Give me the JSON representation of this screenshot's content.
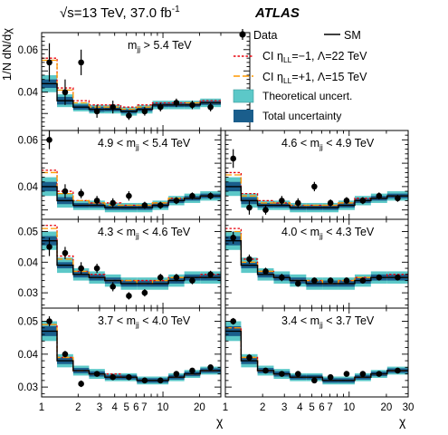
{
  "header": {
    "energy_text": "√s=13 TeV, 37.0 fb",
    "energy_sup": "-1",
    "experiment": "ATLAS"
  },
  "axes": {
    "ylabel": "1/N dN/dχ",
    "xlabel": "χ",
    "x_tick_labels_left": [
      "1",
      "2",
      "3",
      "4",
      "5",
      "6",
      "7",
      "10",
      "20"
    ],
    "x_tick_labels_right": [
      "1",
      "2",
      "3",
      "4",
      "5",
      "6",
      "7",
      "10",
      "20",
      "30"
    ]
  },
  "legend": {
    "data": "Data",
    "sm": "SM",
    "ci_minus_1": "CI η",
    "ci_minus_2": "LL",
    "ci_minus_3": "=−1, Λ=22 TeV",
    "ci_plus_1": "CI η",
    "ci_plus_2": "LL",
    "ci_plus_3": "=+1, Λ=15 TeV",
    "theo": "Theoretical uncert.",
    "total": "Total uncertainty"
  },
  "colors": {
    "theo_band": "#5cc8c8",
    "total_band": "#1a5e8c",
    "ci_minus": "#e8000b",
    "ci_plus": "#ff9900",
    "sm": "#000000",
    "data": "#000000"
  },
  "chart_data": {
    "type": "line",
    "x_scale": "log",
    "xlim": [
      1,
      30
    ],
    "bin_edges": [
      1,
      1.34,
      1.82,
      2.46,
      3.32,
      4.5,
      6.1,
      8.2,
      11.1,
      15.0,
      20.3,
      30.0
    ],
    "panels": [
      {
        "label_pre": "m",
        "label_sub": "jj",
        "label_post": " > 5.4 TeV",
        "ylim": [
          0.022,
          0.068
        ],
        "yticks": [
          "0.04",
          "0.06"
        ],
        "sm": [
          0.044,
          0.036,
          0.033,
          0.032,
          0.032,
          0.031,
          0.032,
          0.034,
          0.034,
          0.034,
          0.035
        ],
        "theo_hw": [
          0.004,
          0.003,
          0.002,
          0.002,
          0.002,
          0.002,
          0.002,
          0.002,
          0.002,
          0.002,
          0.002
        ],
        "total_hw": [
          0.002,
          0.0018,
          0.0012,
          0.0012,
          0.001,
          0.001,
          0.001,
          0.001,
          0.001,
          0.001,
          0.001
        ],
        "ci_minus": [
          0.056,
          0.042,
          0.036,
          0.034,
          0.034,
          0.033,
          0.034,
          0.035,
          0.035,
          0.035,
          0.036
        ],
        "ci_plus": [
          0.055,
          0.041,
          0.035,
          0.033,
          0.033,
          0.032,
          0.033,
          0.034,
          0.034,
          0.035,
          0.035
        ],
        "data": [
          0.054,
          0.04,
          0.054,
          0.031,
          0.033,
          0.029,
          0.031,
          0.033,
          0.035,
          0.034,
          0.033
        ],
        "err": [
          0.009,
          0.006,
          0.006,
          0.003,
          0.003,
          0.002,
          0.002,
          0.002,
          0.002,
          0.002,
          0.002
        ]
      },
      {
        "label_pre": "4.9 < m",
        "label_sub": "jj",
        "label_post": " < 5.4 TeV",
        "ylim": [
          0.026,
          0.064
        ],
        "yticks": [
          "0.04",
          "0.06"
        ],
        "sm": [
          0.04,
          0.034,
          0.032,
          0.032,
          0.031,
          0.031,
          0.031,
          0.032,
          0.034,
          0.035,
          0.036
        ],
        "theo_hw": [
          0.004,
          0.003,
          0.002,
          0.002,
          0.002,
          0.002,
          0.002,
          0.002,
          0.002,
          0.002,
          0.002
        ],
        "total_hw": [
          0.002,
          0.0015,
          0.001,
          0.001,
          0.001,
          0.001,
          0.001,
          0.001,
          0.001,
          0.001,
          0.001
        ],
        "ci_minus": [
          0.047,
          0.038,
          0.034,
          0.033,
          0.033,
          0.032,
          0.032,
          0.033,
          0.035,
          0.035,
          0.036
        ],
        "ci_plus": [
          0.046,
          0.037,
          0.034,
          0.033,
          0.032,
          0.032,
          0.032,
          0.033,
          0.035,
          0.035,
          0.036
        ],
        "data": [
          0.06,
          0.038,
          0.037,
          0.034,
          0.033,
          0.036,
          0.032,
          0.032,
          0.034,
          0.036,
          0.036
        ],
        "err": [
          0.004,
          0.003,
          0.002,
          0.002,
          0.002,
          0.002,
          0.0015,
          0.0015,
          0.0015,
          0.0015,
          0.0015
        ]
      },
      {
        "label_pre": "4.6 < m",
        "label_sub": "jj",
        "label_post": " < 4.9 TeV",
        "ylim": [
          0.026,
          0.064
        ],
        "yticks": [],
        "sm": [
          0.04,
          0.034,
          0.032,
          0.032,
          0.031,
          0.031,
          0.031,
          0.032,
          0.034,
          0.035,
          0.036
        ],
        "theo_hw": [
          0.004,
          0.003,
          0.002,
          0.002,
          0.002,
          0.002,
          0.002,
          0.002,
          0.002,
          0.002,
          0.002
        ],
        "total_hw": [
          0.002,
          0.0015,
          0.001,
          0.001,
          0.001,
          0.001,
          0.001,
          0.001,
          0.001,
          0.001,
          0.001
        ],
        "ci_minus": [
          0.046,
          0.037,
          0.034,
          0.033,
          0.032,
          0.032,
          0.032,
          0.033,
          0.035,
          0.035,
          0.036
        ],
        "ci_plus": [
          0.045,
          0.036,
          0.033,
          0.033,
          0.032,
          0.032,
          0.032,
          0.033,
          0.034,
          0.035,
          0.036
        ],
        "data": [
          0.052,
          0.031,
          0.03,
          0.034,
          0.033,
          0.04,
          0.033,
          0.034,
          0.034,
          0.036,
          0.035
        ],
        "err": [
          0.004,
          0.003,
          0.002,
          0.002,
          0.002,
          0.002,
          0.0015,
          0.0015,
          0.0015,
          0.0015,
          0.0015
        ]
      },
      {
        "label_pre": "4.3 < m",
        "label_sub": "jj",
        "label_post": " < 4.6 TeV",
        "ylim": [
          0.025,
          0.054
        ],
        "yticks": [
          "0.03",
          "0.04",
          "0.05"
        ],
        "sm": [
          0.047,
          0.039,
          0.036,
          0.035,
          0.034,
          0.033,
          0.033,
          0.033,
          0.034,
          0.035,
          0.035
        ],
        "theo_hw": [
          0.003,
          0.0025,
          0.002,
          0.002,
          0.002,
          0.002,
          0.002,
          0.002,
          0.002,
          0.002,
          0.002
        ],
        "total_hw": [
          0.0015,
          0.001,
          0.001,
          0.001,
          0.001,
          0.001,
          0.001,
          0.001,
          0.001,
          0.001,
          0.001
        ],
        "ci_minus": [
          0.052,
          0.042,
          0.037,
          0.036,
          0.034,
          0.034,
          0.034,
          0.034,
          0.035,
          0.035,
          0.036
        ],
        "ci_plus": [
          0.051,
          0.041,
          0.037,
          0.035,
          0.034,
          0.034,
          0.033,
          0.034,
          0.035,
          0.035,
          0.035
        ],
        "data": [
          0.045,
          0.043,
          0.038,
          0.038,
          0.032,
          0.029,
          0.03,
          0.035,
          0.035,
          0.034,
          0.036
        ],
        "err": [
          0.003,
          0.002,
          0.002,
          0.0015,
          0.0015,
          0.0012,
          0.0012,
          0.0012,
          0.0012,
          0.0012,
          0.0012
        ]
      },
      {
        "label_pre": "4.0 < m",
        "label_sub": "jj",
        "label_post": " < 4.3 TeV",
        "ylim": [
          0.025,
          0.054
        ],
        "yticks": [],
        "sm": [
          0.047,
          0.039,
          0.036,
          0.035,
          0.034,
          0.033,
          0.033,
          0.033,
          0.034,
          0.035,
          0.035
        ],
        "theo_hw": [
          0.003,
          0.0025,
          0.002,
          0.002,
          0.002,
          0.002,
          0.002,
          0.002,
          0.002,
          0.002,
          0.002
        ],
        "total_hw": [
          0.0015,
          0.001,
          0.001,
          0.001,
          0.001,
          0.001,
          0.001,
          0.001,
          0.001,
          0.001,
          0.001
        ],
        "ci_minus": [
          0.051,
          0.041,
          0.037,
          0.035,
          0.034,
          0.034,
          0.033,
          0.034,
          0.035,
          0.035,
          0.036
        ],
        "ci_plus": [
          0.05,
          0.04,
          0.037,
          0.035,
          0.034,
          0.034,
          0.033,
          0.034,
          0.035,
          0.035,
          0.035
        ],
        "data": [
          0.048,
          0.041,
          0.037,
          0.035,
          0.033,
          0.034,
          0.034,
          0.034,
          0.034,
          0.035,
          0.035
        ],
        "err": [
          0.002,
          0.0015,
          0.0012,
          0.0012,
          0.001,
          0.001,
          0.001,
          0.001,
          0.001,
          0.001,
          0.001
        ]
      },
      {
        "label_pre": "3.7 < m",
        "label_sub": "jj",
        "label_post": " < 4.0 TeV",
        "ylim": [
          0.027,
          0.054
        ],
        "yticks": [
          "0.03",
          "0.04",
          "0.05"
        ],
        "sm": [
          0.047,
          0.038,
          0.035,
          0.034,
          0.033,
          0.033,
          0.032,
          0.032,
          0.033,
          0.034,
          0.035
        ],
        "theo_hw": [
          0.003,
          0.002,
          0.0015,
          0.0015,
          0.0012,
          0.0012,
          0.0012,
          0.0012,
          0.0012,
          0.0012,
          0.0012
        ],
        "total_hw": [
          0.0015,
          0.001,
          0.0008,
          0.0008,
          0.0007,
          0.0007,
          0.0007,
          0.0007,
          0.0007,
          0.0007,
          0.0007
        ],
        "ci_minus": [
          0.049,
          0.039,
          0.035,
          0.034,
          0.034,
          0.033,
          0.032,
          0.032,
          0.033,
          0.034,
          0.035
        ],
        "ci_plus": [
          0.049,
          0.039,
          0.035,
          0.034,
          0.033,
          0.033,
          0.032,
          0.032,
          0.033,
          0.034,
          0.035
        ],
        "data": [
          0.05,
          0.04,
          0.031,
          0.034,
          0.033,
          0.033,
          0.032,
          0.032,
          0.034,
          0.035,
          0.036
        ],
        "err": [
          0.0015,
          0.001,
          0.001,
          0.0008,
          0.0008,
          0.0008,
          0.0008,
          0.0008,
          0.0008,
          0.0008,
          0.0008
        ]
      },
      {
        "label_pre": "3.4 < m",
        "label_sub": "jj",
        "label_post": " < 3.7 TeV",
        "ylim": [
          0.027,
          0.054
        ],
        "yticks": [],
        "sm": [
          0.047,
          0.038,
          0.035,
          0.034,
          0.033,
          0.033,
          0.032,
          0.032,
          0.033,
          0.034,
          0.035
        ],
        "theo_hw": [
          0.003,
          0.002,
          0.0015,
          0.0015,
          0.0012,
          0.0012,
          0.0012,
          0.0012,
          0.0012,
          0.0012,
          0.0012
        ],
        "total_hw": [
          0.0015,
          0.001,
          0.0008,
          0.0008,
          0.0007,
          0.0007,
          0.0007,
          0.0007,
          0.0007,
          0.0007,
          0.0007
        ],
        "ci_minus": [
          0.048,
          0.039,
          0.035,
          0.034,
          0.033,
          0.033,
          0.032,
          0.032,
          0.033,
          0.034,
          0.035
        ],
        "ci_plus": [
          0.048,
          0.039,
          0.035,
          0.034,
          0.033,
          0.033,
          0.032,
          0.032,
          0.033,
          0.034,
          0.035
        ],
        "data": [
          0.05,
          0.039,
          0.035,
          0.034,
          0.034,
          0.032,
          0.033,
          0.034,
          0.034,
          0.034,
          0.035
        ],
        "err": [
          0.001,
          0.001,
          0.0008,
          0.0008,
          0.0008,
          0.0008,
          0.0008,
          0.0008,
          0.0008,
          0.0008,
          0.0008
        ]
      }
    ]
  }
}
